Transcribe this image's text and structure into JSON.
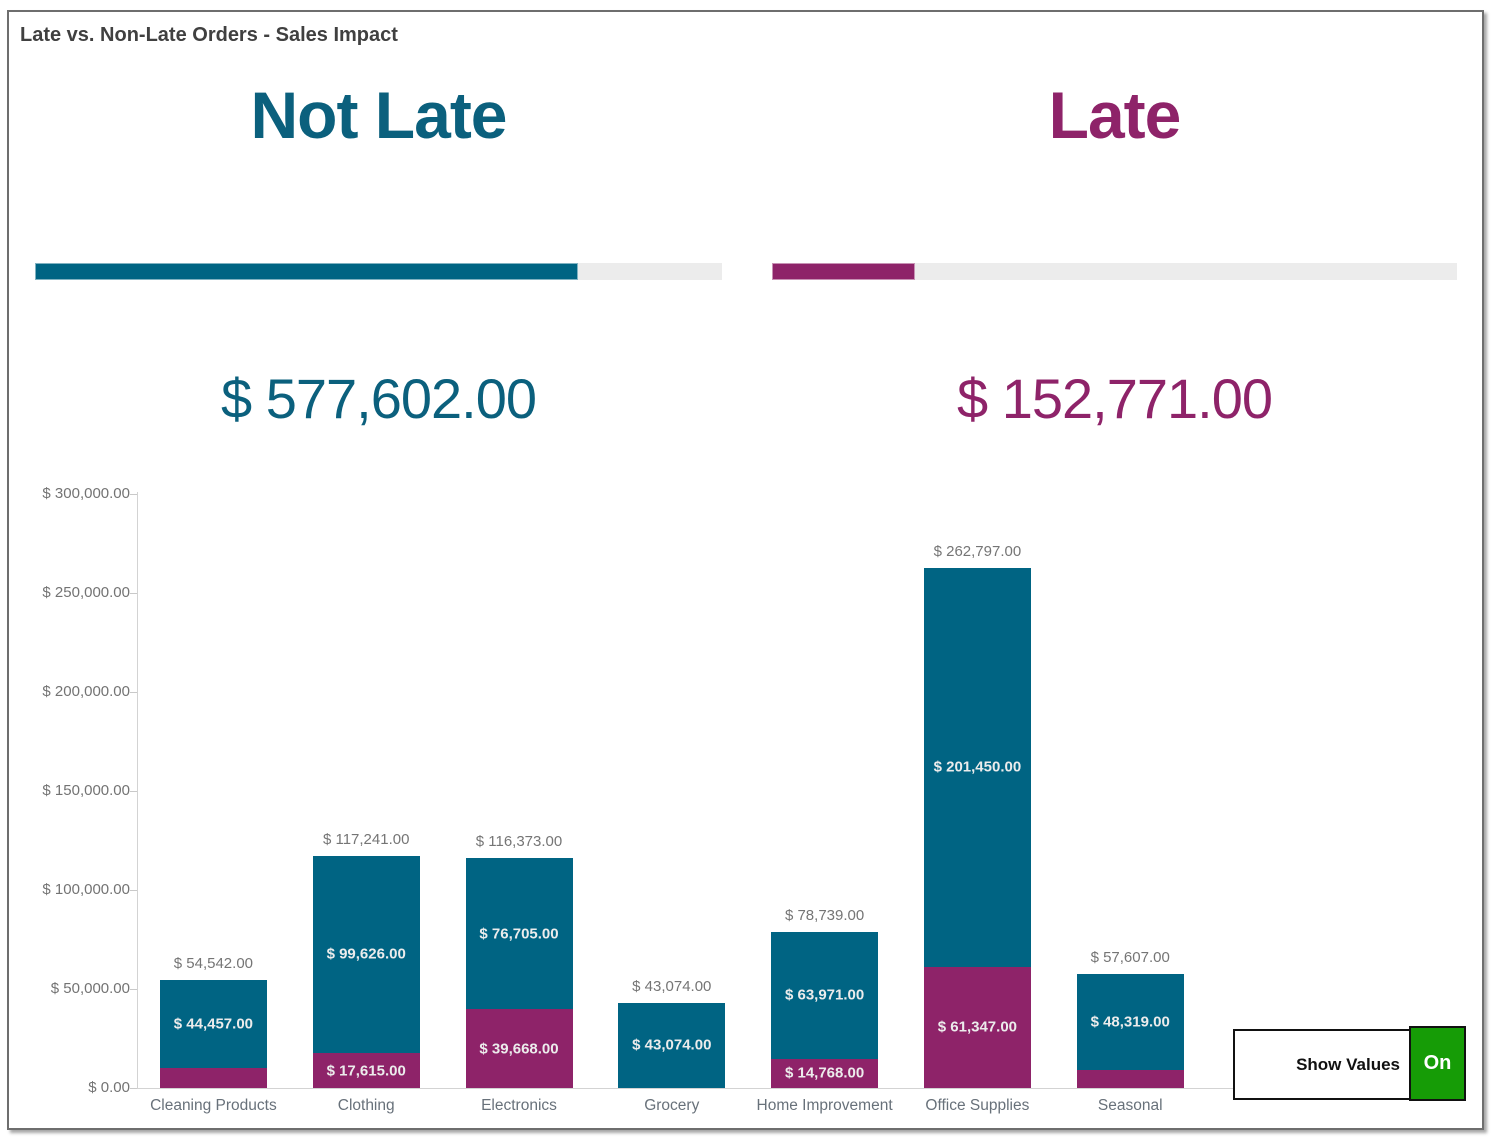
{
  "panel": {
    "title": "Late vs. Non-Late Orders - Sales Impact"
  },
  "kpis": [
    {
      "label": "Not Late",
      "value": 577602.0,
      "display": "$ 577,602.00",
      "bar_color": "#006483",
      "text_color": "#0b607d"
    },
    {
      "label": "Late",
      "value": 152771.0,
      "display": "$ 152,771.00",
      "bar_color": "#8e2369",
      "text_color": "#8e2369"
    }
  ],
  "chart_data": {
    "type": "bar",
    "stacked": true,
    "title": "",
    "xlabel": "",
    "ylabel": "",
    "categories": [
      "Cleaning Products",
      "Clothing",
      "Electronics",
      "Grocery",
      "Home Improvement",
      "Office Supplies",
      "Seasonal"
    ],
    "series": [
      {
        "name": "Late",
        "color": "#8e2369",
        "values": [
          10085,
          17615,
          39668,
          0,
          14768,
          61347,
          9288
        ]
      },
      {
        "name": "Not Late",
        "color": "#006483",
        "values": [
          44457,
          99626,
          76705,
          43074,
          63971,
          201450,
          48319
        ]
      }
    ],
    "totals": [
      54542,
      117241,
      116373,
      43074,
      78739,
      262797,
      57607
    ],
    "ylim": [
      0,
      300000
    ],
    "ytick_step": 50000,
    "ytick_labels": [
      "$ 0.00",
      "$ 50,000.00",
      "$ 100,000.00",
      "$ 150,000.00",
      "$ 200,000.00",
      "$ 250,000.00",
      "$ 300,000.00"
    ],
    "value_prefix": "$ ",
    "grid": false,
    "legend": "none"
  },
  "toggle": {
    "label": "Show Values",
    "state": "On",
    "on_color": "#169c06"
  }
}
